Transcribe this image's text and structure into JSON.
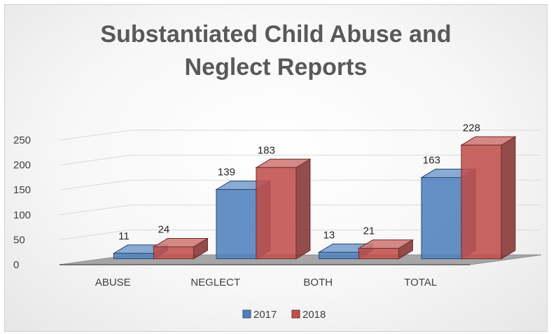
{
  "chart_data": {
    "type": "bar",
    "title": "Substantiated Child Abuse and Neglect Reports",
    "title_lines": [
      "Substantiated Child Abuse and",
      "Neglect Reports"
    ],
    "categories": [
      "ABUSE",
      "NEGLECT",
      "BOTH",
      "TOTAL"
    ],
    "series": [
      {
        "name": "2017",
        "values": [
          11,
          139,
          13,
          163
        ],
        "color": "#4F81BD"
      },
      {
        "name": "2018",
        "values": [
          24,
          183,
          21,
          228
        ],
        "color": "#C0504D"
      }
    ],
    "yticks": [
      0,
      50,
      100,
      150,
      200,
      250
    ],
    "ylim": [
      0,
      250
    ],
    "grid": true,
    "legend": "bottom",
    "style": "3d-clustered-column"
  }
}
